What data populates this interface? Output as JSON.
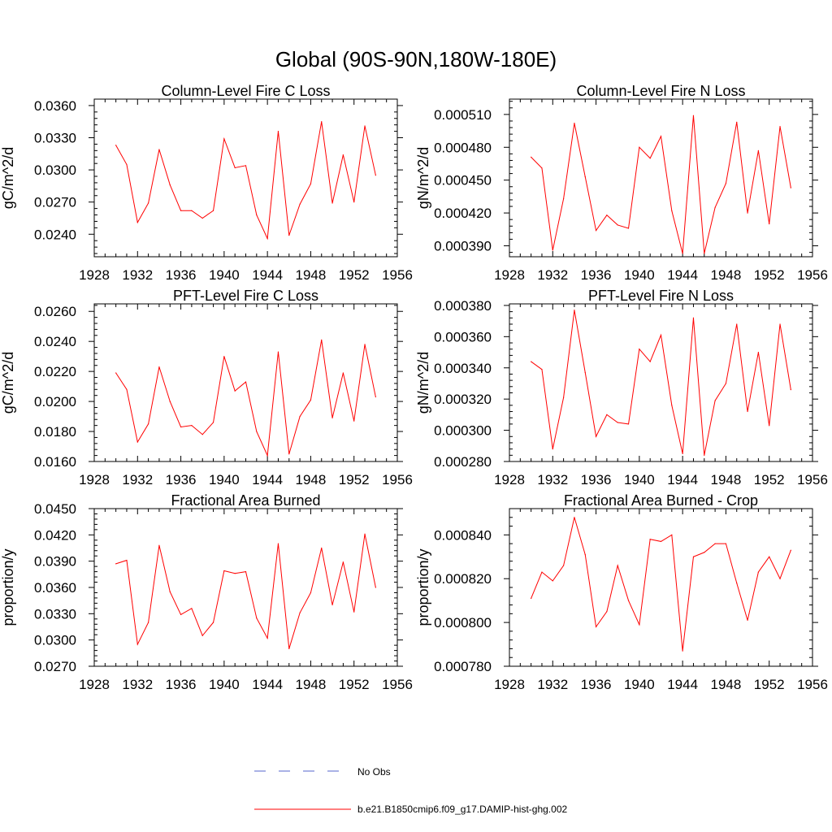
{
  "figure_title": "Global (90S-90N,180W-180E)",
  "legend": [
    {
      "label": "No Obs",
      "color": "#5566cc",
      "style": "dashed"
    },
    {
      "label": "b.e21.B1850cmip6.f09_g17.DAMIP-hist-ghg.002",
      "color": "#ff0000",
      "style": "solid"
    }
  ],
  "chart_data": [
    {
      "type": "line",
      "title": "Column-Level Fire C Loss",
      "ylabel": "gC/m^2/d",
      "xlim": [
        1928,
        1956
      ],
      "ylim": [
        0.0219,
        0.0366
      ],
      "xticks": [
        "1928",
        "1932",
        "1936",
        "1940",
        "1944",
        "1948",
        "1952",
        "1956"
      ],
      "yticks": [
        "0.0240",
        "0.0270",
        "0.0300",
        "0.0330",
        "0.0360"
      ],
      "x": [
        1930,
        1931,
        1932,
        1933,
        1934,
        1935,
        1936,
        1937,
        1938,
        1939,
        1940,
        1941,
        1942,
        1943,
        1944,
        1945,
        1946,
        1947,
        1948,
        1949,
        1950,
        1951,
        1952,
        1953,
        1954
      ],
      "series": [
        {
          "name": "b.e21.B1850cmip6.f09_g17.DAMIP-hist-ghg.002",
          "color": "#ff0000",
          "values": [
            0.0323,
            0.0305,
            0.0251,
            0.0269,
            0.0319,
            0.0286,
            0.0262,
            0.0262,
            0.0255,
            0.0262,
            0.0329,
            0.0302,
            0.0304,
            0.0258,
            0.0236,
            0.0336,
            0.0239,
            0.0268,
            0.0287,
            0.0345,
            0.0269,
            0.0314,
            0.027,
            0.0341,
            0.0295
          ]
        }
      ]
    },
    {
      "type": "line",
      "title": "Column-Level Fire N Loss",
      "ylabel": "gN/m^2/d",
      "xlim": [
        1928,
        1956
      ],
      "ylim": [
        0.00038,
        0.000524
      ],
      "xticks": [
        "1928",
        "1932",
        "1936",
        "1940",
        "1944",
        "1948",
        "1952",
        "1956"
      ],
      "yticks": [
        "0.000390",
        "0.000420",
        "0.000450",
        "0.000480",
        "0.000510"
      ],
      "x": [
        1930,
        1931,
        1932,
        1933,
        1934,
        1935,
        1936,
        1937,
        1938,
        1939,
        1940,
        1941,
        1942,
        1943,
        1944,
        1945,
        1946,
        1947,
        1948,
        1949,
        1950,
        1951,
        1952,
        1953,
        1954
      ],
      "series": [
        {
          "name": "b.e21.B1850cmip6.f09_g17.DAMIP-hist-ghg.002",
          "color": "#ff0000",
          "values": [
            0.000471,
            0.000461,
            0.000386,
            0.000433,
            0.000502,
            0.000453,
            0.000404,
            0.000418,
            0.000409,
            0.000406,
            0.00048,
            0.00047,
            0.00049,
            0.000422,
            0.000383,
            0.000509,
            0.000383,
            0.000425,
            0.000447,
            0.000503,
            0.00042,
            0.000477,
            0.00041,
            0.000499,
            0.000443
          ]
        }
      ]
    },
    {
      "type": "line",
      "title": "PFT-Level Fire C Loss",
      "ylabel": "gC/m^2/d",
      "xlim": [
        1928,
        1956
      ],
      "ylim": [
        0.016,
        0.0265
      ],
      "xticks": [
        "1928",
        "1932",
        "1936",
        "1940",
        "1944",
        "1948",
        "1952",
        "1956"
      ],
      "yticks": [
        "0.0160",
        "0.0180",
        "0.0200",
        "0.0220",
        "0.0240",
        "0.0260"
      ],
      "x": [
        1930,
        1931,
        1932,
        1933,
        1934,
        1935,
        1936,
        1937,
        1938,
        1939,
        1940,
        1941,
        1942,
        1943,
        1944,
        1945,
        1946,
        1947,
        1948,
        1949,
        1950,
        1951,
        1952,
        1953,
        1954
      ],
      "series": [
        {
          "name": "b.e21.B1850cmip6.f09_g17.DAMIP-hist-ghg.002",
          "color": "#ff0000",
          "values": [
            0.0219,
            0.0208,
            0.0173,
            0.0185,
            0.0223,
            0.02,
            0.0183,
            0.0184,
            0.0178,
            0.0186,
            0.023,
            0.0207,
            0.0213,
            0.018,
            0.0164,
            0.0233,
            0.0165,
            0.019,
            0.0201,
            0.0241,
            0.0189,
            0.0219,
            0.0187,
            0.0238,
            0.0203
          ]
        }
      ]
    },
    {
      "type": "line",
      "title": "PFT-Level Fire N Loss",
      "ylabel": "gN/m^2/d",
      "xlim": [
        1928,
        1956
      ],
      "ylim": [
        0.00028,
        0.000381
      ],
      "xticks": [
        "1928",
        "1932",
        "1936",
        "1940",
        "1944",
        "1948",
        "1952",
        "1956"
      ],
      "yticks": [
        "0.000280",
        "0.000300",
        "0.000320",
        "0.000340",
        "0.000360",
        "0.000380"
      ],
      "x": [
        1930,
        1931,
        1932,
        1933,
        1934,
        1935,
        1936,
        1937,
        1938,
        1939,
        1940,
        1941,
        1942,
        1943,
        1944,
        1945,
        1946,
        1947,
        1948,
        1949,
        1950,
        1951,
        1952,
        1953,
        1954
      ],
      "series": [
        {
          "name": "b.e21.B1850cmip6.f09_g17.DAMIP-hist-ghg.002",
          "color": "#ff0000",
          "values": [
            0.000344,
            0.000339,
            0.000288,
            0.000321,
            0.000377,
            0.000337,
            0.000296,
            0.00031,
            0.000305,
            0.000304,
            0.000352,
            0.000344,
            0.000361,
            0.000316,
            0.000285,
            0.000372,
            0.000284,
            0.000319,
            0.00033,
            0.000368,
            0.000312,
            0.00035,
            0.000303,
            0.000368,
            0.000326
          ]
        }
      ]
    },
    {
      "type": "line",
      "title": "Fractional Area Burned",
      "ylabel": "proportion/y",
      "xlim": [
        1928,
        1956
      ],
      "ylim": [
        0.027,
        0.045
      ],
      "xticks": [
        "1928",
        "1932",
        "1936",
        "1940",
        "1944",
        "1948",
        "1952",
        "1956"
      ],
      "yticks": [
        "0.0270",
        "0.0300",
        "0.0330",
        "0.0360",
        "0.0390",
        "0.0420",
        "0.0450"
      ],
      "x": [
        1930,
        1931,
        1932,
        1933,
        1934,
        1935,
        1936,
        1937,
        1938,
        1939,
        1940,
        1941,
        1942,
        1943,
        1944,
        1945,
        1946,
        1947,
        1948,
        1949,
        1950,
        1951,
        1952,
        1953,
        1954
      ],
      "series": [
        {
          "name": "b.e21.B1850cmip6.f09_g17.DAMIP-hist-ghg.002",
          "color": "#ff0000",
          "values": [
            0.0387,
            0.0391,
            0.0295,
            0.032,
            0.0408,
            0.0355,
            0.0329,
            0.0336,
            0.0305,
            0.032,
            0.0379,
            0.0376,
            0.0378,
            0.0325,
            0.0302,
            0.041,
            0.029,
            0.0331,
            0.0354,
            0.0405,
            0.034,
            0.0389,
            0.0332,
            0.0421,
            0.036
          ]
        }
      ]
    },
    {
      "type": "line",
      "title": "Fractional Area Burned - Crop",
      "ylabel": "proportion/y",
      "xlim": [
        1928,
        1956
      ],
      "ylim": [
        0.00078,
        0.000852
      ],
      "xticks": [
        "1928",
        "1932",
        "1936",
        "1940",
        "1944",
        "1948",
        "1952",
        "1956"
      ],
      "yticks": [
        "0.000780",
        "0.000800",
        "0.000820",
        "0.000840"
      ],
      "x": [
        1930,
        1931,
        1932,
        1933,
        1934,
        1935,
        1936,
        1937,
        1938,
        1939,
        1940,
        1941,
        1942,
        1943,
        1944,
        1945,
        1946,
        1947,
        1948,
        1949,
        1950,
        1951,
        1952,
        1953,
        1954
      ],
      "series": [
        {
          "name": "b.e21.B1850cmip6.f09_g17.DAMIP-hist-ghg.002",
          "color": "#ff0000",
          "values": [
            0.000811,
            0.000823,
            0.000819,
            0.000826,
            0.000848,
            0.000831,
            0.000798,
            0.000805,
            0.000826,
            0.00081,
            0.000799,
            0.000838,
            0.000837,
            0.00084,
            0.000787,
            0.00083,
            0.000832,
            0.000836,
            0.000836,
            0.000818,
            0.000801,
            0.000823,
            0.00083,
            0.00082,
            0.000833
          ]
        }
      ]
    }
  ]
}
